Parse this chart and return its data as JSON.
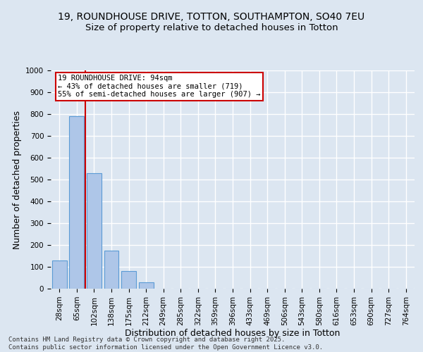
{
  "title_line1": "19, ROUNDHOUSE DRIVE, TOTTON, SOUTHAMPTON, SO40 7EU",
  "title_line2": "Size of property relative to detached houses in Totton",
  "xlabel": "Distribution of detached houses by size in Totton",
  "ylabel": "Number of detached properties",
  "categories": [
    "28sqm",
    "65sqm",
    "102sqm",
    "138sqm",
    "175sqm",
    "212sqm",
    "249sqm",
    "285sqm",
    "322sqm",
    "359sqm",
    "396sqm",
    "433sqm",
    "469sqm",
    "506sqm",
    "543sqm",
    "580sqm",
    "616sqm",
    "653sqm",
    "690sqm",
    "727sqm",
    "764sqm"
  ],
  "values": [
    130,
    790,
    530,
    175,
    80,
    30,
    0,
    0,
    0,
    0,
    0,
    0,
    0,
    0,
    0,
    0,
    0,
    0,
    0,
    0,
    0
  ],
  "bar_color": "#aec6e8",
  "bar_edgecolor": "#5b9bd5",
  "background_color": "#dce6f1",
  "grid_color": "#ffffff",
  "vline_color": "#cc0000",
  "vline_pos": 1.5,
  "annotation_text": "19 ROUNDHOUSE DRIVE: 94sqm\n← 43% of detached houses are smaller (719)\n55% of semi-detached houses are larger (907) →",
  "annotation_box_color": "#ffffff",
  "annotation_box_edgecolor": "#cc0000",
  "ylim": [
    0,
    1000
  ],
  "yticks": [
    0,
    100,
    200,
    300,
    400,
    500,
    600,
    700,
    800,
    900,
    1000
  ],
  "footer": "Contains HM Land Registry data © Crown copyright and database right 2025.\nContains public sector information licensed under the Open Government Licence v3.0.",
  "title_fontsize": 10,
  "subtitle_fontsize": 9.5,
  "tick_fontsize": 7.5,
  "label_fontsize": 9,
  "annotation_fontsize": 7.5
}
